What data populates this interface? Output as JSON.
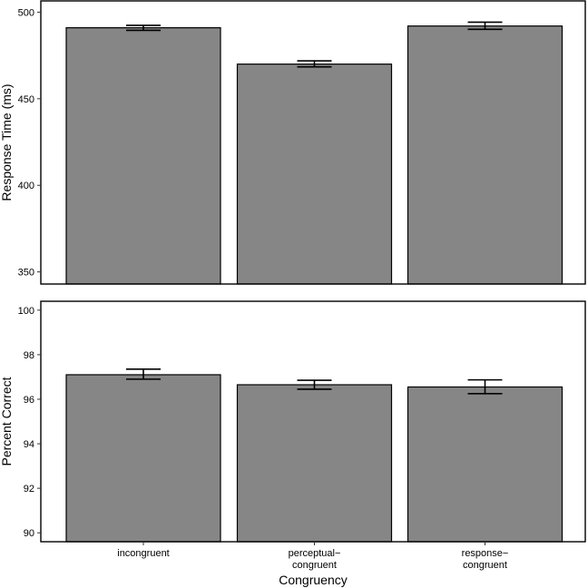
{
  "colors": {
    "bar_fill": "#868686",
    "bar_stroke": "#000000",
    "panel_border": "#000000",
    "error_bar": "#000000"
  },
  "chart_data": [
    {
      "type": "bar",
      "title": "",
      "xlabel": "",
      "ylabel": "Response Time (ms)",
      "categories": [
        "incongruent",
        "perceptual-congruent",
        "response-congruent"
      ],
      "values": [
        491,
        470,
        492
      ],
      "error_low": [
        489.5,
        468.4,
        490.1
      ],
      "error_high": [
        492.4,
        471.9,
        494.2
      ],
      "yticks": [
        350,
        400,
        450,
        500
      ],
      "ylim": [
        343,
        506.5
      ],
      "grid": false,
      "legend": "none"
    },
    {
      "type": "bar",
      "title": "",
      "xlabel": "Congruency",
      "ylabel": "Percent Correct",
      "categories": [
        "incongruent",
        "perceptual-congruent",
        "response-congruent"
      ],
      "category_lines": [
        [
          "incongruent"
        ],
        [
          "perceptual−",
          "congruent"
        ],
        [
          "response−",
          "congruent"
        ]
      ],
      "values": [
        97.1,
        96.65,
        96.55
      ],
      "error_low": [
        96.9,
        96.45,
        96.25
      ],
      "error_high": [
        97.35,
        96.85,
        96.87
      ],
      "yticks": [
        90,
        92,
        94,
        96,
        98,
        100
      ],
      "ylim": [
        89.6,
        100.4
      ],
      "grid": false,
      "legend": "none"
    }
  ]
}
